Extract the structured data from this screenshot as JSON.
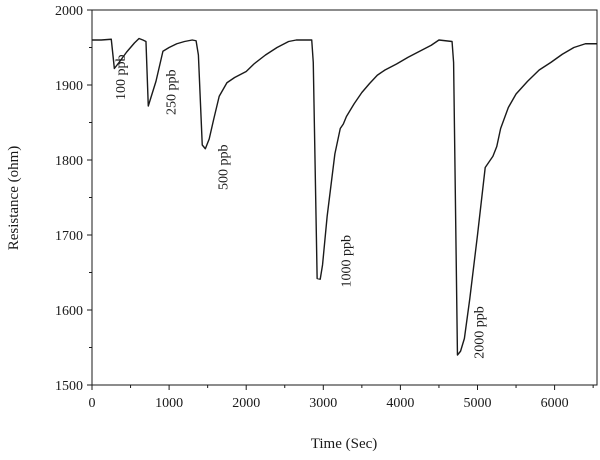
{
  "chart_data": {
    "type": "line",
    "title": "",
    "xlabel": "Time (Sec)",
    "ylabel": "Resistance (ohm)",
    "xlim": [
      0,
      6550
    ],
    "ylim": [
      1500,
      2000
    ],
    "xticks": [
      0,
      1000,
      2000,
      3000,
      4000,
      5000,
      6000
    ],
    "yticks": [
      1500,
      1600,
      1700,
      1800,
      1900,
      2000
    ],
    "grid": false,
    "line_color": "#1a1a1a",
    "series": [
      {
        "x": [
          0,
          120,
          250,
          290,
          350,
          450,
          550,
          610,
          660,
          700,
          730,
          830,
          920,
          1000,
          1100,
          1200,
          1300,
          1350,
          1380,
          1430,
          1470,
          1520,
          1580,
          1650,
          1750,
          1850,
          2000,
          2100,
          2250,
          2400,
          2550,
          2650,
          2850,
          2870,
          2920,
          2960,
          2990,
          3050,
          3150,
          3220,
          3260,
          3300,
          3400,
          3500,
          3600,
          3700,
          3800,
          3950,
          4100,
          4250,
          4400,
          4500,
          4670,
          4690,
          4740,
          4780,
          4830,
          4900,
          5000,
          5100,
          5200,
          5250,
          5300,
          5400,
          5500,
          5650,
          5800,
          5950,
          6100,
          6250,
          6400,
          6500,
          6550
        ],
        "y": [
          1960,
          1960,
          1961,
          1922,
          1930,
          1944,
          1956,
          1962,
          1960,
          1958,
          1872,
          1905,
          1945,
          1950,
          1955,
          1958,
          1960,
          1959,
          1940,
          1820,
          1815,
          1828,
          1855,
          1885,
          1903,
          1910,
          1918,
          1928,
          1940,
          1950,
          1958,
          1960,
          1960,
          1930,
          1642,
          1641,
          1660,
          1725,
          1808,
          1842,
          1848,
          1858,
          1875,
          1890,
          1902,
          1913,
          1920,
          1928,
          1937,
          1945,
          1953,
          1960,
          1958,
          1930,
          1540,
          1545,
          1562,
          1615,
          1700,
          1790,
          1805,
          1818,
          1842,
          1870,
          1888,
          1905,
          1920,
          1930,
          1941,
          1950,
          1955,
          1955,
          1955
        ]
      }
    ],
    "annotations": [
      {
        "text": "100 ppb",
        "x": 430,
        "y": 1880
      },
      {
        "text": "250 ppb",
        "x": 1080,
        "y": 1860
      },
      {
        "text": "500 ppb",
        "x": 1760,
        "y": 1760
      },
      {
        "text": "1000 ppb",
        "x": 3350,
        "y": 1630
      },
      {
        "text": "2000 ppb",
        "x": 5080,
        "y": 1535
      }
    ]
  }
}
